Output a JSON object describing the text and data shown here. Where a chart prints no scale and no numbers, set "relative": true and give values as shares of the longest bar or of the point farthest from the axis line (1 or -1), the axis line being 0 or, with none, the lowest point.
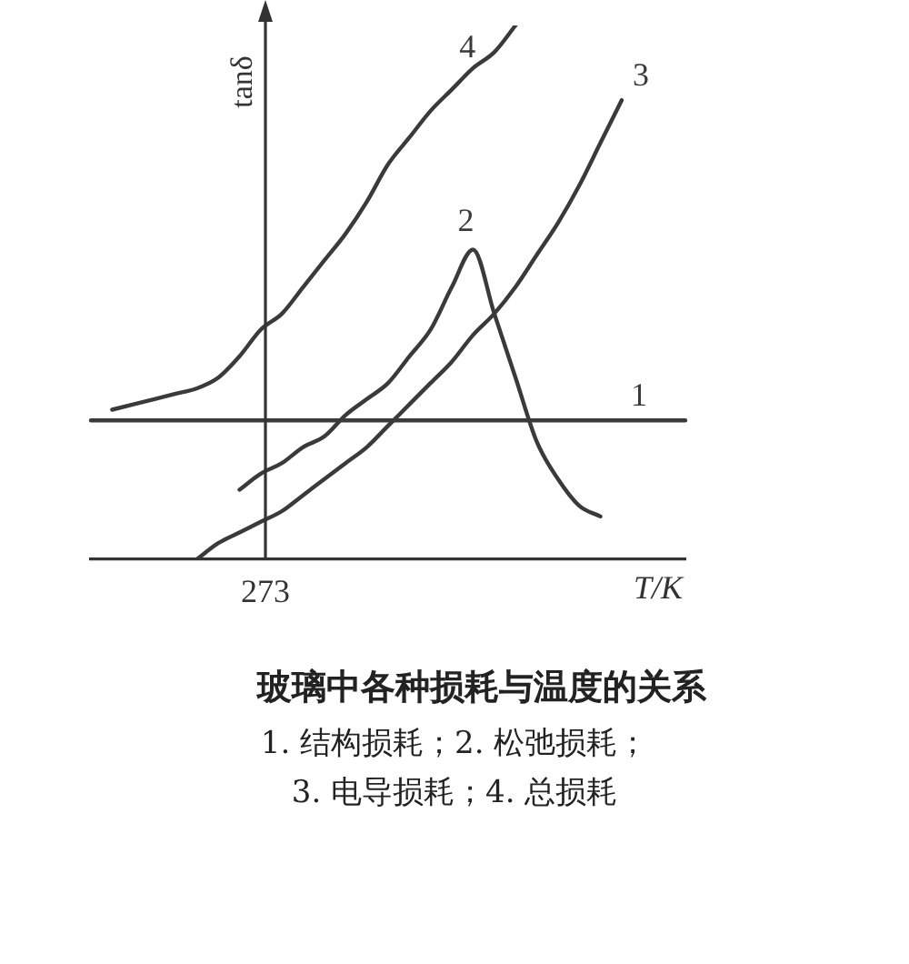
{
  "chart_data": {
    "type": "line",
    "title": "玻璃中各种损耗与温度的关系",
    "xlabel": "T/K",
    "ylabel": "tanδ",
    "relative": true,
    "legend": false,
    "grid": false,
    "categories": [
      null,
      null,
      null,
      null,
      null,
      null,
      null,
      null,
      null,
      null,
      null,
      null,
      null,
      null,
      null,
      null,
      null,
      null,
      null,
      null,
      null,
      null,
      null,
      null,
      null,
      null,
      null,
      null,
      null
    ],
    "series": [
      {
        "name": "1",
        "color": "#3a3a3a",
        "values": [
          0.26,
          0.26,
          0.26,
          0.26,
          0.26,
          0.26,
          0.26,
          0.26,
          0.26,
          0.26,
          0.26,
          0.26,
          0.26,
          0.26,
          0.26,
          0.26,
          0.26,
          0.26,
          0.26,
          0.26,
          0.26,
          0.26,
          0.26,
          0.26,
          0.26,
          0.26,
          0.26,
          0.26,
          0.26
        ]
      },
      {
        "name": "2",
        "color": "#3a3a3a",
        "values": [
          null,
          null,
          null,
          null,
          null,
          null,
          null,
          0.13,
          0.16,
          0.18,
          0.21,
          0.23,
          0.27,
          0.3,
          0.33,
          0.38,
          0.43,
          0.51,
          0.58,
          0.46,
          0.34,
          0.22,
          0.15,
          0.1,
          0.08,
          null,
          null,
          null,
          null
        ]
      },
      {
        "name": "3",
        "color": "#3a3a3a",
        "values": [
          null,
          null,
          null,
          null,
          null,
          0,
          0.03,
          0.05,
          0.07,
          0.09,
          0.12,
          0.15,
          0.18,
          0.21,
          0.25,
          0.29,
          0.33,
          0.37,
          0.42,
          0.46,
          0.51,
          0.57,
          0.63,
          0.7,
          0.78,
          0.86,
          null,
          null,
          null
        ]
      },
      {
        "name": "4",
        "color": "#3a3a3a",
        "values": [
          null,
          0.28,
          0.29,
          0.3,
          0.31,
          0.32,
          0.34,
          0.38,
          0.43,
          0.46,
          0.51,
          0.56,
          0.61,
          0.67,
          0.74,
          0.79,
          0.84,
          0.88,
          0.92,
          0.95,
          1,
          null,
          null,
          null,
          null,
          null,
          null,
          null,
          null
        ]
      }
    ],
    "annotations": [
      "273",
      "1. 结构损耗；2. 松弛损耗；",
      "3. 电导损耗；4. 总损耗"
    ]
  }
}
